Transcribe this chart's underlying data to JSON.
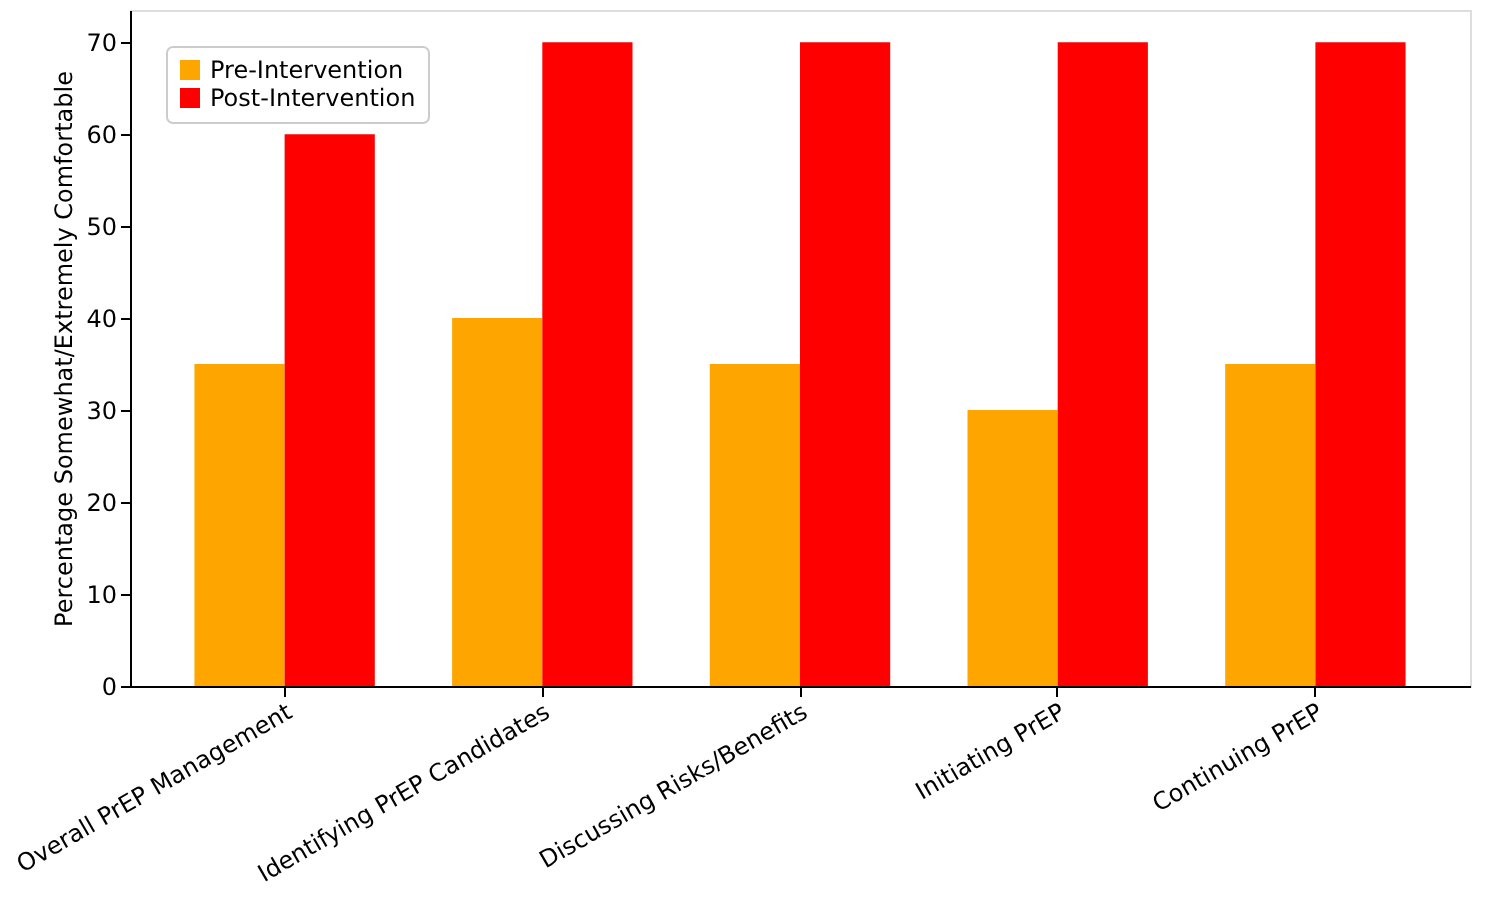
{
  "chart_data": {
    "type": "bar",
    "ylabel": "Percentage Somewhat/Extremely Comfortable",
    "categories": [
      "Overall PrEP Management",
      "Identifying PrEP Candidates",
      "Discussing Risks/Benefits",
      "Initiating PrEP",
      "Continuing PrEP"
    ],
    "series": [
      {
        "name": "Pre-Intervention",
        "color": "#ffa500",
        "values": [
          35,
          40,
          35,
          30,
          35
        ]
      },
      {
        "name": "Post-Intervention",
        "color": "#ff0000",
        "values": [
          60,
          70,
          70,
          70,
          70
        ]
      }
    ],
    "ylim": [
      0,
      73.5
    ],
    "yticks": [
      0,
      10,
      20,
      30,
      40,
      50,
      60,
      70
    ],
    "grid": false,
    "legend": "top left"
  }
}
